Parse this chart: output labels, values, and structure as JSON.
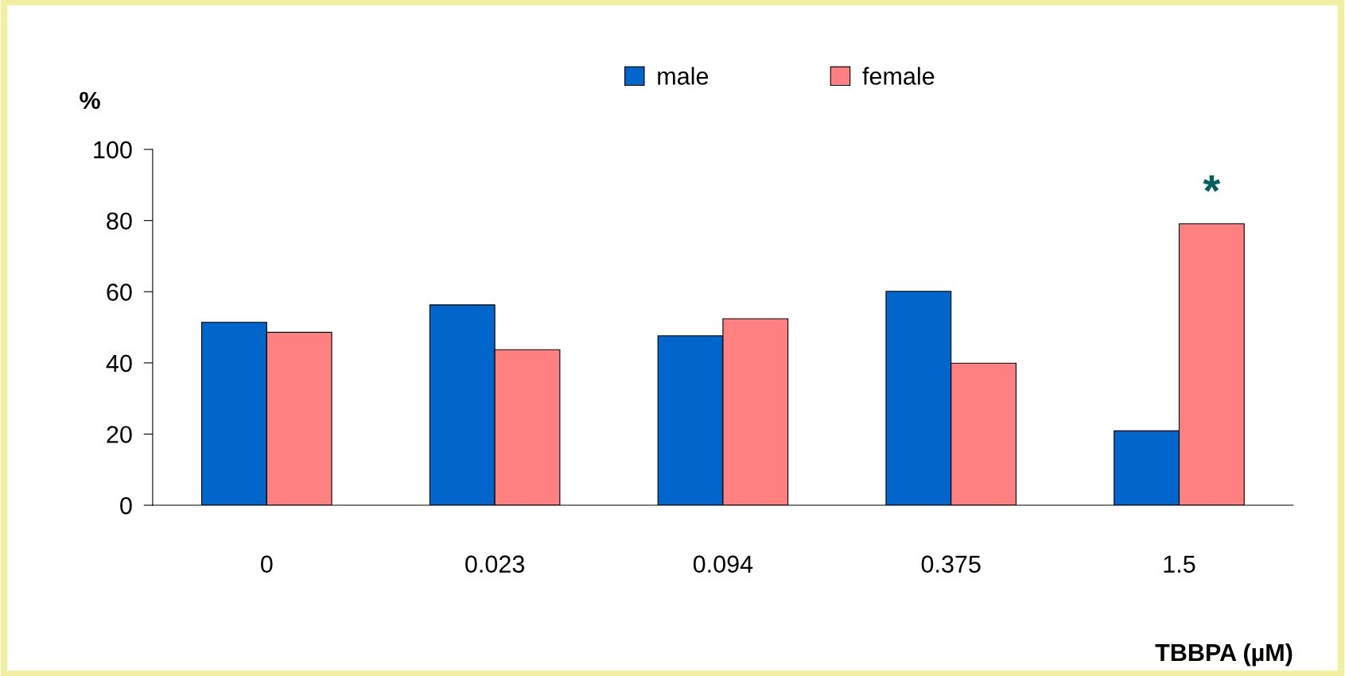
{
  "chart_data": {
    "type": "bar",
    "ylabel": "%",
    "xlabel": "TBBPA (µM)",
    "categories": [
      "0",
      "0.023",
      "0.094",
      "0.375",
      "1.5"
    ],
    "series": [
      {
        "name": "male",
        "color": "#0066cc",
        "values": [
          51.4,
          56.3,
          47.6,
          60.1,
          20.9
        ]
      },
      {
        "name": "female",
        "color": "#ff8080",
        "values": [
          48.6,
          43.7,
          52.4,
          39.9,
          79.1
        ]
      }
    ],
    "ylim": [
      0,
      100
    ],
    "yticks": [
      0,
      20,
      40,
      60,
      80,
      100
    ],
    "grid": false,
    "legend": "top",
    "annotations": [
      {
        "text": "*",
        "x": "1.5",
        "y": 79.1
      }
    ]
  }
}
